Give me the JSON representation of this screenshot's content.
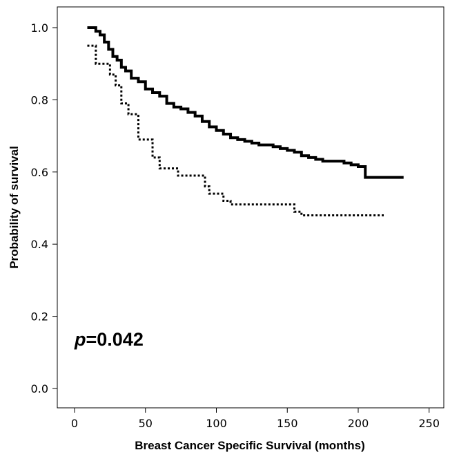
{
  "chart_data": {
    "type": "line",
    "step": true,
    "xlabel": "Breast Cancer Specific Survival (months)",
    "ylabel": "Probability of survival",
    "xlim": [
      0,
      250
    ],
    "ylim": [
      0,
      1.0
    ],
    "xticks": [
      0,
      50,
      100,
      150,
      200,
      250
    ],
    "xtick_labels": [
      "0",
      "50",
      "100",
      "150",
      "200",
      "250"
    ],
    "yticks": [
      0.0,
      0.2,
      0.4,
      0.6,
      0.8,
      1.0
    ],
    "ytick_labels": [
      "0.0",
      "0.2",
      "0.4",
      "0.6",
      "0.8",
      "1.0"
    ],
    "grid": false,
    "annotation": {
      "italic": "p",
      "rest": "=0.042"
    },
    "series": [
      {
        "style": "solid",
        "color": "#000000",
        "x": [
          9,
          15,
          18,
          21,
          24,
          27,
          30,
          33,
          36,
          40,
          45,
          50,
          55,
          60,
          65,
          70,
          75,
          80,
          85,
          90,
          95,
          100,
          105,
          110,
          115,
          120,
          125,
          130,
          135,
          140,
          145,
          150,
          155,
          160,
          165,
          170,
          175,
          180,
          185,
          190,
          195,
          200,
          205,
          210,
          215,
          220,
          225,
          232
        ],
        "y": [
          1.0,
          0.99,
          0.98,
          0.96,
          0.94,
          0.92,
          0.91,
          0.89,
          0.88,
          0.86,
          0.85,
          0.83,
          0.82,
          0.81,
          0.79,
          0.78,
          0.775,
          0.765,
          0.755,
          0.74,
          0.725,
          0.715,
          0.705,
          0.695,
          0.69,
          0.685,
          0.68,
          0.675,
          0.675,
          0.67,
          0.665,
          0.66,
          0.655,
          0.645,
          0.64,
          0.635,
          0.63,
          0.63,
          0.63,
          0.625,
          0.62,
          0.615,
          0.585,
          0.585,
          0.585,
          0.585,
          0.585,
          0.585
        ]
      },
      {
        "style": "dotted",
        "color": "#000000",
        "x": [
          9,
          15,
          25,
          29,
          33,
          38,
          45,
          55,
          60,
          73,
          92,
          95,
          105,
          110,
          155,
          160,
          185,
          200,
          218
        ],
        "y": [
          0.95,
          0.9,
          0.87,
          0.84,
          0.79,
          0.76,
          0.69,
          0.64,
          0.61,
          0.59,
          0.56,
          0.54,
          0.52,
          0.51,
          0.49,
          0.48,
          0.48,
          0.48,
          0.48
        ]
      }
    ]
  }
}
